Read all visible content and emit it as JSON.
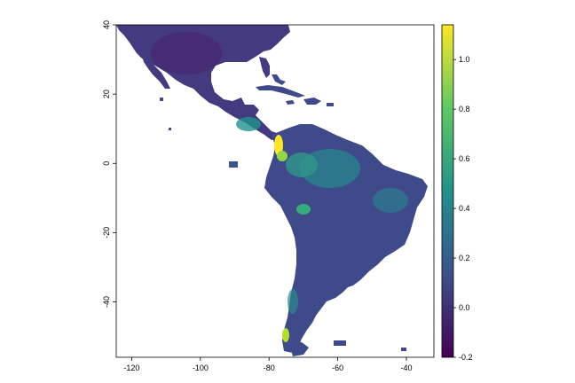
{
  "map": {
    "type": "raster",
    "x_ticks": [
      {
        "value": -120,
        "label": "-120"
      },
      {
        "value": -100,
        "label": "-100"
      },
      {
        "value": -80,
        "label": "-80"
      },
      {
        "value": -60,
        "label": "-60"
      },
      {
        "value": -40,
        "label": "-40"
      }
    ],
    "y_ticks": [
      {
        "value": 40,
        "label": "40"
      },
      {
        "value": 20,
        "label": "20"
      },
      {
        "value": 0,
        "label": "0"
      },
      {
        "value": -20,
        "label": "-20"
      },
      {
        "value": -40,
        "label": "-40"
      }
    ],
    "xlim": [
      -124.5,
      -32
    ],
    "ylim": [
      -56,
      40
    ],
    "colors": {
      "low": "#440154",
      "mid_low": "#3b528b",
      "mid": "#21918c",
      "mid_high": "#5ec962",
      "high": "#fde725",
      "land_base": "#3e4a89",
      "land_north": "#433a7f"
    }
  },
  "legend": {
    "ticks": [
      {
        "value": 1.0,
        "label": "1.0"
      },
      {
        "value": 0.8,
        "label": "0.8"
      },
      {
        "value": 0.6,
        "label": "0.6"
      },
      {
        "value": 0.4,
        "label": "0.4"
      },
      {
        "value": 0.2,
        "label": "0.2"
      },
      {
        "value": 0.0,
        "label": "0.0"
      },
      {
        "value": -0.2,
        "label": "-0.2"
      }
    ],
    "range": [
      -0.2,
      1.14
    ]
  }
}
